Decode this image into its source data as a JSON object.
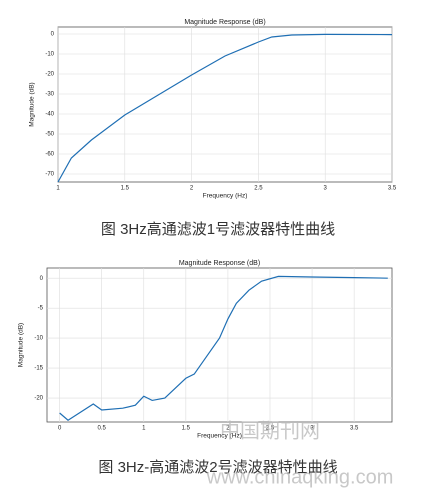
{
  "chart_data": [
    {
      "type": "line",
      "title": "Magnitude Response (dB)",
      "xlabel": "Frequency (Hz)",
      "ylabel": "Magnitude (dB)",
      "caption": "图 3Hz高通滤波1号滤波器特性曲线",
      "x": [
        1,
        1.1,
        1.25,
        1.5,
        1.75,
        2,
        2.25,
        2.5,
        2.6,
        2.75,
        3,
        3.5
      ],
      "series": [
        {
          "name": "1号滤波器",
          "color": "#1f6fb4",
          "values": [
            -74,
            -62,
            -53,
            -40.5,
            -30.5,
            -20.5,
            -11,
            -4,
            -1.5,
            -0.5,
            -0.2,
            -0.3
          ]
        }
      ],
      "xlim": [
        1,
        3.5
      ],
      "xticks": [
        1,
        1.5,
        2,
        2.5,
        3,
        3.5
      ],
      "ylim": [
        -74,
        3.5
      ],
      "yticks": [
        0,
        -10,
        -20,
        -30,
        -40,
        -50,
        -60,
        -70
      ],
      "grid": true
    },
    {
      "type": "line",
      "title": "Magnitude Response (dB)",
      "xlabel": "Frequency (Hz)",
      "ylabel": "Magnitude (dB)",
      "caption": "图 3Hz-高通滤波2号滤波器特性曲线",
      "x": [
        0,
        0.1,
        0.4,
        0.5,
        0.75,
        0.9,
        1,
        1.1,
        1.25,
        1.5,
        1.6,
        1.75,
        1.9,
        2,
        2.1,
        2.25,
        2.4,
        2.6,
        3,
        3.5,
        3.9
      ],
      "series": [
        {
          "name": "2号滤波器",
          "color": "#1f6fb4",
          "values": [
            -22.5,
            -23.7,
            -21,
            -22,
            -21.7,
            -21.2,
            -19.7,
            -20.4,
            -20,
            -16.7,
            -16,
            -13,
            -10,
            -6.8,
            -4.2,
            -2,
            -0.5,
            0.3,
            0.2,
            0.1,
            0
          ]
        }
      ],
      "xlim": [
        -0.15,
        3.95
      ],
      "xticks": [
        0,
        0.5,
        1,
        1.5,
        2,
        2.5,
        3,
        3.5
      ],
      "ylim": [
        -24,
        1.7
      ],
      "yticks": [
        0,
        -5,
        -10,
        -15,
        -20
      ],
      "grid": true
    }
  ],
  "watermark": {
    "name": "中国期刊网",
    "url": "www.chinaqking.com"
  }
}
